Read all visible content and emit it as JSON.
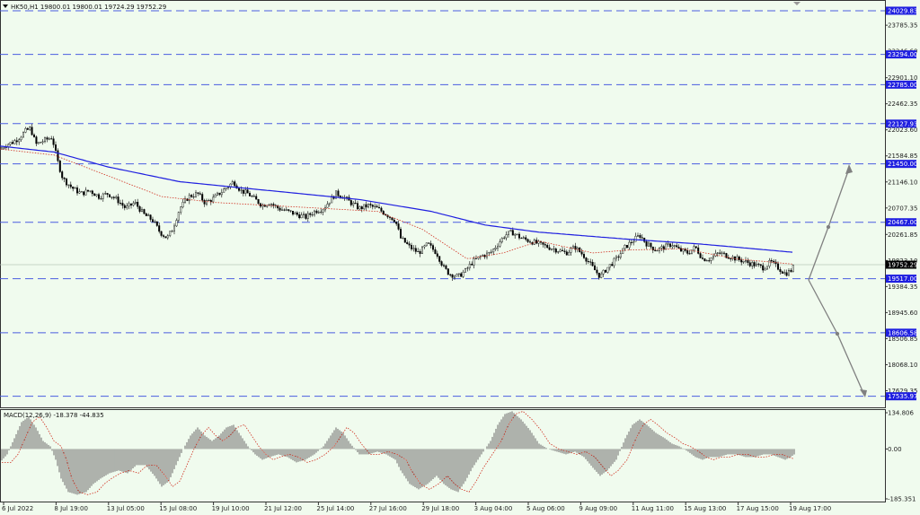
{
  "header": {
    "symbol_info": "HK50,H1  19800.01 19800.01 19724.29 19752.29",
    "menu_icon": "triangle-down-icon"
  },
  "macd_header": "MACD(12,26,9) -18.378 -44.835",
  "colors": {
    "background": "#f0fbee",
    "candle": "#000000",
    "ma_slow": "#1f1fe0",
    "ma_fast": "#d03020",
    "level_line": "#4a5ce0",
    "level_label_bg": "#1f1fe0",
    "price_label_bg": "#000000",
    "arrow": "#808080"
  },
  "chart_data": {
    "type": "candlestick",
    "symbol": "HK50",
    "timeframe": "H1",
    "ohlc_current": {
      "open": 19800.01,
      "high": 19800.01,
      "low": 19724.29,
      "close": 19752.29
    },
    "ylim": [
      17380,
      24150
    ],
    "x_labels": [
      "6 Jul 2022",
      "8 Jul 19:00",
      "13 Jul 05:00",
      "15 Jul 08:00",
      "19 Jul 10:00",
      "21 Jul 12:00",
      "25 Jul 14:00",
      "27 Jul 16:00",
      "29 Jul 18:00",
      "3 Aug 04:00",
      "5 Aug 06:00",
      "9 Aug 09:00",
      "11 Aug 11:00",
      "15 Aug 13:00",
      "17 Aug 15:00",
      "19 Aug 17:00"
    ],
    "y_ticks": [
      "23785.35",
      "23346.60",
      "22901.10",
      "22462.35",
      "22023.60",
      "21584.85",
      "21146.10",
      "20707.35",
      "20261.85",
      "19823.10",
      "19384.35",
      "18945.60",
      "18506.85",
      "18068.10",
      "17629.35"
    ],
    "levels": [
      "24029.83",
      "23294.00",
      "22785.00",
      "22127.93",
      "21450.00",
      "20467.00",
      "19517.00",
      "18606.58",
      "17535.97"
    ],
    "current_price": "19752.29",
    "close_path": [
      [
        0,
        21700
      ],
      [
        8,
        21780
      ],
      [
        15,
        21820
      ],
      [
        22,
        21900
      ],
      [
        28,
        22000
      ],
      [
        34,
        22050
      ],
      [
        40,
        21780
      ],
      [
        50,
        21850
      ],
      [
        58,
        21900
      ],
      [
        64,
        21500
      ],
      [
        70,
        21200
      ],
      [
        80,
        21050
      ],
      [
        90,
        20950
      ],
      [
        100,
        21000
      ],
      [
        110,
        20900
      ],
      [
        120,
        20950
      ],
      [
        130,
        20850
      ],
      [
        140,
        20700
      ],
      [
        150,
        20800
      ],
      [
        160,
        20600
      ],
      [
        170,
        20500
      ],
      [
        178,
        20300
      ],
      [
        186,
        20200
      ],
      [
        192,
        20350
      ],
      [
        200,
        20700
      ],
      [
        210,
        20900
      ],
      [
        220,
        20950
      ],
      [
        228,
        20800
      ],
      [
        236,
        20850
      ],
      [
        244,
        20950
      ],
      [
        252,
        21050
      ],
      [
        260,
        21150
      ],
      [
        268,
        21000
      ],
      [
        276,
        20950
      ],
      [
        284,
        20850
      ],
      [
        292,
        20750
      ],
      [
        300,
        20800
      ],
      [
        310,
        20700
      ],
      [
        320,
        20650
      ],
      [
        330,
        20600
      ],
      [
        340,
        20550
      ],
      [
        350,
        20650
      ],
      [
        360,
        20700
      ],
      [
        368,
        20850
      ],
      [
        374,
        20950
      ],
      [
        382,
        20900
      ],
      [
        390,
        20800
      ],
      [
        400,
        20700
      ],
      [
        410,
        20750
      ],
      [
        420,
        20700
      ],
      [
        430,
        20600
      ],
      [
        440,
        20500
      ],
      [
        446,
        20200
      ],
      [
        456,
        20050
      ],
      [
        466,
        19950
      ],
      [
        476,
        20100
      ],
      [
        486,
        19950
      ],
      [
        494,
        19700
      ],
      [
        500,
        19600
      ],
      [
        510,
        19550
      ],
      [
        518,
        19650
      ],
      [
        526,
        19800
      ],
      [
        536,
        19900
      ],
      [
        546,
        19950
      ],
      [
        554,
        20100
      ],
      [
        562,
        20250
      ],
      [
        570,
        20300
      ],
      [
        580,
        20200
      ],
      [
        590,
        20150
      ],
      [
        600,
        20100
      ],
      [
        610,
        20050
      ],
      [
        620,
        20000
      ],
      [
        630,
        19950
      ],
      [
        640,
        20050
      ],
      [
        650,
        19900
      ],
      [
        660,
        19700
      ],
      [
        668,
        19550
      ],
      [
        676,
        19700
      ],
      [
        686,
        19850
      ],
      [
        696,
        20050
      ],
      [
        704,
        20150
      ],
      [
        712,
        20250
      ],
      [
        720,
        20100
      ],
      [
        730,
        20000
      ],
      [
        740,
        20050
      ],
      [
        748,
        20100
      ],
      [
        756,
        20000
      ],
      [
        766,
        19950
      ],
      [
        774,
        20050
      ],
      [
        782,
        19850
      ],
      [
        790,
        19850
      ],
      [
        800,
        19950
      ],
      [
        810,
        19900
      ],
      [
        820,
        19850
      ],
      [
        830,
        19800
      ],
      [
        840,
        19750
      ],
      [
        850,
        19700
      ],
      [
        858,
        19800
      ],
      [
        866,
        19700
      ],
      [
        874,
        19600
      ],
      [
        880,
        19650
      ],
      [
        885,
        19752
      ]
    ],
    "ma_slow_path": [
      [
        0,
        21750
      ],
      [
        60,
        21650
      ],
      [
        120,
        21400
      ],
      [
        200,
        21150
      ],
      [
        300,
        21000
      ],
      [
        400,
        20850
      ],
      [
        480,
        20650
      ],
      [
        540,
        20420
      ],
      [
        600,
        20300
      ],
      [
        700,
        20180
      ],
      [
        780,
        20100
      ],
      [
        884,
        19960
      ]
    ],
    "ma_fast_path": [
      [
        0,
        21700
      ],
      [
        60,
        21600
      ],
      [
        120,
        21250
      ],
      [
        180,
        20900
      ],
      [
        240,
        20800
      ],
      [
        300,
        20750
      ],
      [
        360,
        20700
      ],
      [
        420,
        20650
      ],
      [
        470,
        20350
      ],
      [
        520,
        19850
      ],
      [
        560,
        19950
      ],
      [
        600,
        20150
      ],
      [
        660,
        19950
      ],
      [
        700,
        20000
      ],
      [
        760,
        20020
      ],
      [
        820,
        19850
      ],
      [
        884,
        19760
      ]
    ],
    "macd": {
      "ylim": [
        -185.351,
        134.806
      ],
      "y_ticks": [
        "134.806",
        "0.00",
        "-185.351"
      ],
      "hist_path": [
        [
          0,
          -50
        ],
        [
          8,
          -20
        ],
        [
          16,
          40
        ],
        [
          24,
          100
        ],
        [
          32,
          120
        ],
        [
          40,
          80
        ],
        [
          48,
          30
        ],
        [
          56,
          10
        ],
        [
          62,
          -40
        ],
        [
          68,
          -110
        ],
        [
          76,
          -160
        ],
        [
          86,
          -170
        ],
        [
          96,
          -160
        ],
        [
          104,
          -130
        ],
        [
          112,
          -110
        ],
        [
          122,
          -90
        ],
        [
          132,
          -80
        ],
        [
          142,
          -90
        ],
        [
          152,
          -60
        ],
        [
          162,
          -60
        ],
        [
          172,
          -100
        ],
        [
          180,
          -140
        ],
        [
          188,
          -120
        ],
        [
          196,
          -60
        ],
        [
          204,
          0
        ],
        [
          212,
          50
        ],
        [
          220,
          80
        ],
        [
          228,
          50
        ],
        [
          236,
          30
        ],
        [
          244,
          50
        ],
        [
          252,
          80
        ],
        [
          260,
          90
        ],
        [
          268,
          50
        ],
        [
          276,
          10
        ],
        [
          284,
          -20
        ],
        [
          292,
          -40
        ],
        [
          300,
          -30
        ],
        [
          310,
          -20
        ],
        [
          320,
          -30
        ],
        [
          330,
          -50
        ],
        [
          340,
          -40
        ],
        [
          350,
          -20
        ],
        [
          360,
          10
        ],
        [
          368,
          50
        ],
        [
          374,
          80
        ],
        [
          382,
          60
        ],
        [
          390,
          20
        ],
        [
          400,
          -20
        ],
        [
          410,
          -20
        ],
        [
          420,
          -10
        ],
        [
          430,
          -20
        ],
        [
          440,
          -40
        ],
        [
          446,
          -80
        ],
        [
          456,
          -130
        ],
        [
          466,
          -150
        ],
        [
          476,
          -130
        ],
        [
          486,
          -100
        ],
        [
          494,
          -130
        ],
        [
          502,
          -150
        ],
        [
          510,
          -160
        ],
        [
          518,
          -120
        ],
        [
          526,
          -70
        ],
        [
          536,
          -20
        ],
        [
          546,
          30
        ],
        [
          554,
          90
        ],
        [
          562,
          130
        ],
        [
          570,
          140
        ],
        [
          580,
          110
        ],
        [
          590,
          70
        ],
        [
          600,
          20
        ],
        [
          610,
          0
        ],
        [
          620,
          -10
        ],
        [
          630,
          -20
        ],
        [
          640,
          -10
        ],
        [
          650,
          -30
        ],
        [
          660,
          -70
        ],
        [
          668,
          -100
        ],
        [
          676,
          -80
        ],
        [
          686,
          -40
        ],
        [
          696,
          40
        ],
        [
          704,
          90
        ],
        [
          712,
          110
        ],
        [
          720,
          90
        ],
        [
          730,
          60
        ],
        [
          740,
          40
        ],
        [
          748,
          20
        ],
        [
          756,
          10
        ],
        [
          766,
          -10
        ],
        [
          774,
          -30
        ],
        [
          782,
          -40
        ],
        [
          790,
          -30
        ],
        [
          800,
          -30
        ],
        [
          810,
          -20
        ],
        [
          820,
          -20
        ],
        [
          830,
          -30
        ],
        [
          840,
          -30
        ],
        [
          850,
          -20
        ],
        [
          858,
          -20
        ],
        [
          866,
          -30
        ],
        [
          874,
          -40
        ],
        [
          880,
          -30
        ],
        [
          885,
          -18
        ]
      ]
    }
  }
}
